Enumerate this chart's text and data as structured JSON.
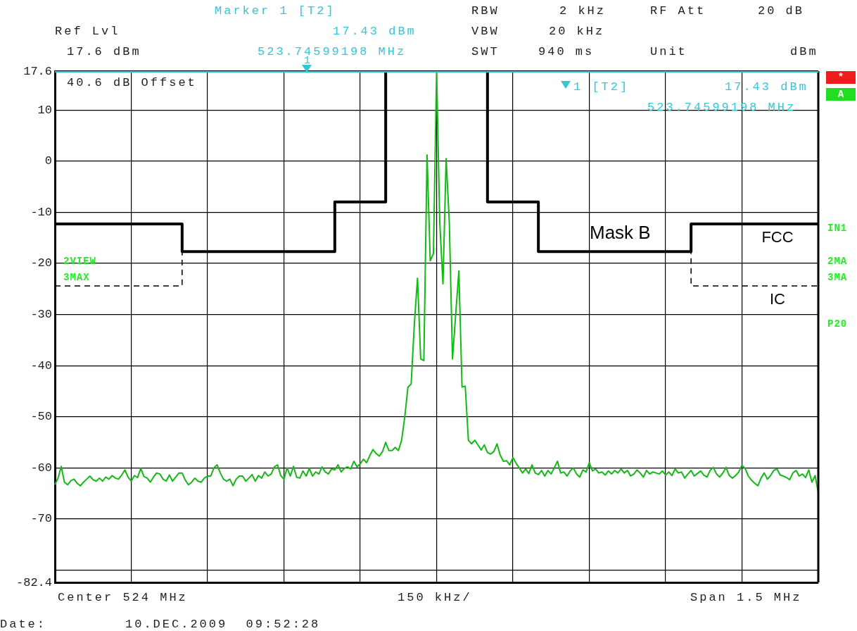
{
  "chart_data": {
    "type": "line",
    "categories": [
      null,
      null,
      null,
      null,
      null,
      null,
      null,
      null,
      null,
      null,
      null,
      null,
      null,
      null,
      null,
      null,
      null,
      null,
      null,
      null,
      null,
      null,
      null,
      null,
      null,
      null,
      null,
      null,
      null,
      null,
      null,
      null,
      null,
      null,
      null,
      null,
      null,
      null,
      null,
      null,
      null,
      null,
      null,
      null,
      null,
      null,
      null,
      null,
      null,
      null,
      null,
      null,
      null,
      null,
      null,
      null,
      null,
      null,
      null,
      null,
      null,
      null,
      null,
      null,
      null,
      null,
      null,
      null,
      null,
      null,
      null,
      null,
      null,
      null,
      null,
      null,
      null,
      null,
      null,
      null,
      null,
      null,
      null,
      null,
      null,
      null,
      null,
      null,
      null,
      null,
      null,
      null,
      null,
      null,
      null,
      null,
      null,
      null,
      null,
      null,
      null,
      null,
      null,
      null,
      null,
      null,
      null,
      null,
      null,
      null,
      null,
      null,
      null,
      null,
      null,
      null,
      null,
      null,
      null,
      null,
      null,
      null,
      null,
      null,
      null,
      null,
      null,
      null,
      null,
      null,
      null,
      null,
      null,
      null,
      null,
      null,
      null,
      null,
      null,
      null,
      null,
      null,
      null,
      null,
      null,
      null,
      null,
      null,
      null,
      null,
      null,
      null,
      null,
      null,
      null,
      null,
      null,
      null,
      null,
      null,
      null,
      null,
      null,
      null,
      null,
      null,
      null,
      null,
      null,
      null,
      null,
      null,
      null,
      null,
      null,
      null,
      null,
      null,
      null,
      null,
      null,
      null,
      null,
      null,
      null,
      null,
      null,
      null,
      null,
      null,
      null,
      null,
      null,
      null,
      null,
      null,
      null,
      null,
      null,
      null,
      null,
      null,
      null,
      null,
      null,
      null,
      null,
      null,
      null,
      null,
      null,
      null,
      null,
      null,
      null,
      null,
      null,
      null,
      null,
      null,
      null,
      null,
      null,
      null,
      null,
      null,
      null,
      null,
      null,
      null,
      null,
      null,
      null,
      null,
      null,
      null,
      null,
      null,
      null,
      null,
      null
    ],
    "ylim": [
      -82.4,
      17.6
    ],
    "yticks": [
      17.6,
      10,
      0,
      -10,
      -20,
      -30,
      -40,
      -50,
      -60,
      -70,
      {
        "value": -80,
        "label": null
      },
      -82.4
    ],
    "tick_labels": "y",
    "grid": true,
    "legend": false,
    "marker": "none",
    "series": [
      {
        "color": "#11bb11",
        "line_style": "solid",
        "values": [
          -63.3,
          -62.0,
          -59.7,
          -62.8,
          -63.3,
          -62.5,
          -62.2,
          -63.0,
          -63.5,
          -62.8,
          -62.2,
          -61.6,
          -62.3,
          -62.6,
          -62.0,
          -62.6,
          -61.8,
          -62.2,
          -61.5,
          -62.0,
          -62.2,
          -61.4,
          -60.4,
          -61.8,
          -62.6,
          -61.5,
          -61.9,
          -60.1,
          -61.7,
          -62.0,
          -62.8,
          -61.8,
          -61.0,
          -61.2,
          -62.2,
          -62.6,
          -61.4,
          -62.6,
          -61.8,
          -61.0,
          -61.0,
          -62.4,
          -63.3,
          -62.8,
          -62.0,
          -62.6,
          -62.8,
          -62.0,
          -61.6,
          -61.6,
          -60.0,
          -59.4,
          -61.0,
          -62.2,
          -62.6,
          -62.2,
          -63.5,
          -62.2,
          -61.6,
          -61.6,
          -62.6,
          -62.0,
          -61.3,
          -62.6,
          -61.5,
          -62.0,
          -60.8,
          -61.6,
          -61.2,
          -59.8,
          -59.4,
          -61.5,
          -62.2,
          -60.0,
          -61.6,
          -59.7,
          -61.8,
          -62.0,
          -60.6,
          -61.6,
          -60.1,
          -61.6,
          -60.8,
          -61.2,
          -59.8,
          -60.8,
          -61.2,
          -60.2,
          -60.4,
          -59.4,
          -60.8,
          -60.1,
          -59.8,
          -60.2,
          -58.7,
          -59.8,
          -59.2,
          -58.3,
          -59.0,
          -57.6,
          -56.4,
          -57.2,
          -57.7,
          -56.8,
          -55.0,
          -56.6,
          -56.6,
          -56.0,
          -56.6,
          -54.6,
          -50.0,
          -44.2,
          -43.6,
          -32.0,
          -22.9,
          -38.7,
          -39.0,
          1.2,
          -19.5,
          -18.1,
          17.3,
          -12.0,
          -24.0,
          0.5,
          -12.0,
          -38.7,
          -30.0,
          -21.5,
          -44.2,
          -44.0,
          -54.6,
          -55.3,
          -54.6,
          -55.5,
          -56.5,
          -55.5,
          -57.0,
          -57.3,
          -56.8,
          -55.3,
          -57.5,
          -58.7,
          -58.6,
          -59.4,
          -58.0,
          -59.1,
          -60.0,
          -61.0,
          -60.2,
          -61.1,
          -59.4,
          -61.0,
          -61.3,
          -60.5,
          -61.6,
          -60.5,
          -61.2,
          -60.0,
          -58.7,
          -61.0,
          -60.8,
          -61.6,
          -60.6,
          -60.0,
          -61.2,
          -61.8,
          -60.4,
          -60.8,
          -59.0,
          -60.6,
          -60.2,
          -61.0,
          -60.8,
          -61.4,
          -60.6,
          -61.2,
          -60.5,
          -61.0,
          -60.2,
          -61.0,
          -60.5,
          -61.6,
          -61.2,
          -60.4,
          -61.0,
          -61.8,
          -60.5,
          -61.2,
          -60.8,
          -61.0,
          -61.2,
          -60.6,
          -61.4,
          -60.8,
          -61.5,
          -60.2,
          -61.0,
          -60.8,
          -62.0,
          -61.2,
          -60.5,
          -61.6,
          -61.1,
          -60.6,
          -61.4,
          -61.8,
          -60.5,
          -59.9,
          -61.2,
          -61.8,
          -61.0,
          -59.9,
          -61.5,
          -62.0,
          -61.5,
          -60.8,
          -59.5,
          -60.1,
          -61.6,
          -62.4,
          -63.0,
          -63.5,
          -62.0,
          -61.0,
          -62.2,
          -61.5,
          -60.5,
          -60.2,
          -61.4,
          -61.6,
          -61.9,
          -62.3,
          -61.0,
          -60.5,
          -61.6,
          -61.2,
          -61.9,
          -60.4,
          -62.8,
          -61.5,
          -64.9
        ]
      },
      {
        "name": "FCC",
        "type": "step",
        "color": "#000000",
        "line_style": "solid",
        "values": [
          -12.3,
          -12.3,
          -12.3,
          -12.3,
          -12.3,
          -12.3,
          -12.3,
          -12.3,
          -12.3,
          -12.3,
          -12.3,
          -12.3,
          -12.3,
          -12.3,
          -12.3,
          -12.3,
          -12.3,
          -12.3,
          -12.3,
          -12.3,
          -12.3,
          -12.3,
          -12.3,
          -12.3,
          -12.3,
          -12.3,
          -12.3,
          -12.3,
          -12.3,
          -12.3,
          -12.3,
          -12.3,
          -12.3,
          -12.3,
          -12.3,
          -12.3,
          -12.3,
          -12.3,
          -12.3,
          -12.3,
          -17.7,
          -17.7,
          -17.7,
          -17.7,
          -17.7,
          -17.7,
          -17.7,
          -17.7,
          -17.7,
          -17.7,
          -17.7,
          -17.7,
          -17.7,
          -17.7,
          -17.7,
          -17.7,
          -17.7,
          -17.7,
          -17.7,
          -17.7,
          -17.7,
          -17.7,
          -17.7,
          -17.7,
          -17.7,
          -17.7,
          -17.7,
          -17.7,
          -17.7,
          -17.7,
          -17.7,
          -17.7,
          -17.7,
          -17.7,
          -17.7,
          -17.7,
          -17.7,
          -17.7,
          -17.7,
          -17.7,
          -17.7,
          -17.7,
          -17.7,
          -17.7,
          -17.7,
          -17.7,
          -17.7,
          -17.7,
          -8,
          -8,
          -8,
          -8,
          -8,
          -8,
          -8,
          -8,
          -8,
          -8,
          -8,
          -8,
          -8,
          -8,
          -8,
          -8,
          17.6,
          17.6,
          17.6,
          17.6,
          17.6,
          17.6,
          17.6,
          17.6,
          17.6,
          17.6,
          17.6,
          17.6,
          17.6,
          17.6,
          17.6,
          17.6,
          17.6,
          17.6,
          17.6,
          17.6,
          17.6,
          17.6,
          17.6,
          17.6,
          17.6,
          17.6,
          17.6,
          17.6,
          17.6,
          17.6,
          17.6,
          17.6,
          -8,
          -8,
          -8,
          -8,
          -8,
          -8,
          -8,
          -8,
          -8,
          -8,
          -8,
          -8,
          -8,
          -8,
          -8,
          -8,
          -17.7,
          -17.7,
          -17.7,
          -17.7,
          -17.7,
          -17.7,
          -17.7,
          -17.7,
          -17.7,
          -17.7,
          -17.7,
          -17.7,
          -17.7,
          -17.7,
          -17.7,
          -17.7,
          -17.7,
          -17.7,
          -17.7,
          -17.7,
          -17.7,
          -17.7,
          -17.7,
          -17.7,
          -17.7,
          -17.7,
          -17.7,
          -17.7,
          -17.7,
          -17.7,
          -17.7,
          -17.7,
          -17.7,
          -17.7,
          -17.7,
          -17.7,
          -17.7,
          -17.7,
          -17.7,
          -17.7,
          -17.7,
          -17.7,
          -17.7,
          -17.7,
          -17.7,
          -17.7,
          -17.7,
          -17.7,
          -12.3,
          -12.3,
          -12.3,
          -12.3,
          -12.3,
          -12.3,
          -12.3,
          -12.3,
          -12.3,
          -12.3,
          -12.3,
          -12.3,
          -12.3,
          -12.3,
          -12.3,
          -12.3,
          -12.3,
          -12.3,
          -12.3,
          -12.3,
          -12.3,
          -12.3,
          -12.3,
          -12.3,
          -12.3,
          -12.3,
          -12.3,
          -12.3,
          -12.3,
          -12.3,
          -12.3,
          -12.3,
          -12.3,
          -12.3,
          -12.3,
          -12.3,
          -12.3,
          -12.3,
          -12.3,
          -12.3,
          -12.3
        ]
      },
      {
        "name": "IC",
        "type": "step",
        "color": "#000000",
        "line_style": "dashed",
        "values": [
          -24.4,
          -24.4,
          -24.4,
          -24.4,
          -24.4,
          -24.4,
          -24.4,
          -24.4,
          -24.4,
          -24.4,
          -24.4,
          -24.4,
          -24.4,
          -24.4,
          -24.4,
          -24.4,
          -24.4,
          -24.4,
          -24.4,
          -24.4,
          -24.4,
          -24.4,
          -24.4,
          -24.4,
          -24.4,
          -24.4,
          -24.4,
          -24.4,
          -24.4,
          -24.4,
          -24.4,
          -24.4,
          -24.4,
          -24.4,
          -24.4,
          -24.4,
          -24.4,
          -24.4,
          -24.4,
          -24.4,
          -17.7,
          null,
          null,
          null,
          null,
          null,
          null,
          null,
          null,
          null,
          null,
          null,
          null,
          null,
          null,
          null,
          null,
          null,
          null,
          null,
          null,
          null,
          null,
          null,
          null,
          null,
          null,
          null,
          null,
          null,
          null,
          null,
          null,
          null,
          null,
          null,
          null,
          null,
          null,
          null,
          null,
          null,
          null,
          null,
          null,
          null,
          null,
          null,
          null,
          null,
          null,
          null,
          null,
          null,
          null,
          null,
          null,
          null,
          null,
          null,
          null,
          null,
          null,
          null,
          null,
          null,
          null,
          null,
          null,
          null,
          null,
          null,
          null,
          null,
          null,
          null,
          null,
          null,
          null,
          null,
          null,
          null,
          null,
          null,
          null,
          null,
          null,
          null,
          null,
          null,
          null,
          null,
          null,
          null,
          null,
          null,
          null,
          null,
          null,
          null,
          null,
          null,
          null,
          null,
          null,
          null,
          null,
          null,
          null,
          null,
          null,
          null,
          null,
          null,
          null,
          null,
          null,
          null,
          null,
          null,
          null,
          null,
          null,
          null,
          null,
          null,
          null,
          null,
          null,
          null,
          null,
          null,
          null,
          null,
          null,
          null,
          null,
          null,
          null,
          null,
          null,
          null,
          null,
          null,
          null,
          null,
          null,
          null,
          null,
          null,
          null,
          null,
          null,
          null,
          null,
          null,
          null,
          null,
          null,
          -17.7,
          -24.4,
          -24.4,
          -24.4,
          -24.4,
          -24.4,
          -24.4,
          -24.4,
          -24.4,
          -24.4,
          -24.4,
          -24.4,
          -24.4,
          -24.4,
          -24.4,
          -24.4,
          -24.4,
          -24.4,
          -24.4,
          -24.4,
          -24.4,
          -24.4,
          -24.4,
          -24.4,
          -24.4,
          -24.4,
          -24.4,
          -24.4,
          -24.4,
          -24.4,
          -24.4,
          -24.4,
          -24.4,
          -24.4,
          -24.4,
          -24.4,
          -24.4,
          -24.4,
          -24.4,
          -24.4,
          -24.4,
          -24.4
        ]
      }
    ],
    "annotations": [
      "Marker 1 [T2]",
      "Ref Lvl",
      "17.43 dBm",
      "17.6 dBm",
      "523.74599198 MHz",
      "RBW",
      "2 kHz",
      "RF Att",
      "20 dB",
      "VBW",
      "20 kHz",
      "SWT",
      "940 ms",
      "Unit",
      "dBm",
      "40.6 dB Offset",
      "1 [T2]",
      "17.43 dBm",
      "523.74599198 MHz",
      "2VIEW",
      "3MAX",
      "IN1",
      "2MA",
      "3MA",
      "P20",
      "*",
      "A",
      "Center 524 MHz",
      "150 kHz/",
      "Span 1.5 MHz",
      "Date:",
      "10.DEC.2009  09:52:28",
      "Mask B",
      "1"
    ]
  }
}
